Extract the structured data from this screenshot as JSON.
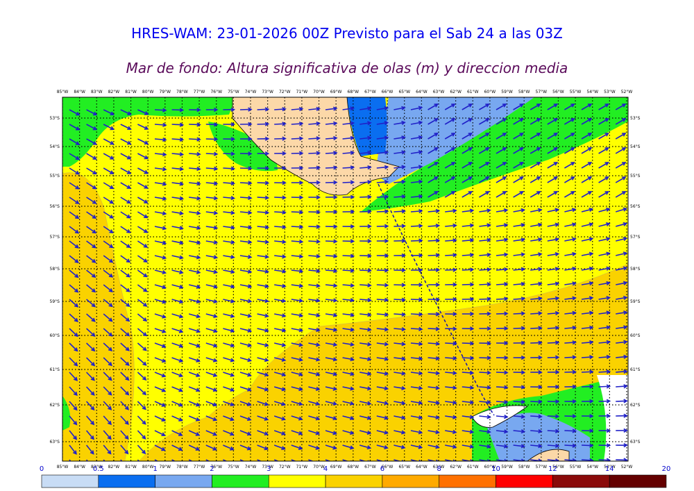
{
  "header": {
    "title": "HRES-WAM: 23-01-2026 00Z Previsto para el Sab 24 a las 03Z",
    "subtitle": "Mar de fondo: Altura significativa de olas (m) y direccion media"
  },
  "map": {
    "lon_labels": [
      "85°W",
      "84°W",
      "83°W",
      "82°W",
      "81°W",
      "80°W",
      "79°W",
      "78°W",
      "77°W",
      "76°W",
      "75°W",
      "74°W",
      "73°W",
      "72°W",
      "71°W",
      "70°W",
      "69°W",
      "68°W",
      "67°W",
      "66°W",
      "65°W",
      "64°W",
      "63°W",
      "62°W",
      "61°W",
      "60°W",
      "59°W",
      "58°W",
      "57°W",
      "56°W",
      "55°W",
      "54°W",
      "53°W",
      "52°W"
    ],
    "lat_labels": [
      "53°S",
      "54°S",
      "55°S",
      "56°S",
      "57°S",
      "58°S",
      "59°S",
      "60°S",
      "61°S",
      "62°S",
      "63°S"
    ]
  },
  "colorbar": {
    "labels": [
      "0",
      "0.5",
      "1",
      "2",
      "3",
      "4",
      "6",
      "8",
      "10",
      "12",
      "14",
      "20"
    ],
    "colors": [
      "#c8dcf5",
      "#0a6ef0",
      "#78a8f0",
      "#22ee22",
      "#ffff00",
      "#fad200",
      "#ffaa00",
      "#ff7000",
      "#ff0000",
      "#8a0a0a",
      "#640000",
      "#333333"
    ]
  }
}
